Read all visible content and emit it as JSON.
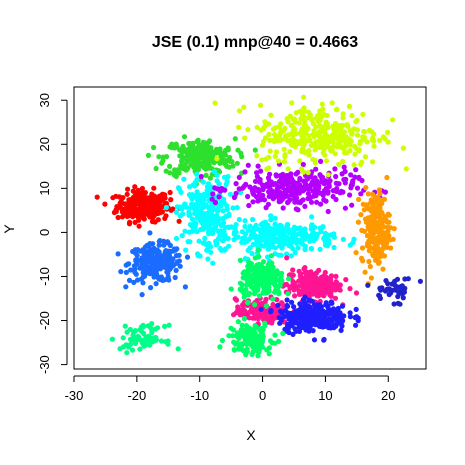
{
  "chart_data": {
    "type": "scatter",
    "title": "JSE (0.1) mnp@40 = 0.4663",
    "xlabel": "X",
    "ylabel": "Y",
    "xlim": [
      -30,
      26
    ],
    "ylim": [
      -31,
      33
    ],
    "xticks": [
      -30,
      -20,
      -10,
      0,
      10,
      20
    ],
    "yticks": [
      -30,
      -20,
      -10,
      0,
      10,
      20,
      30
    ],
    "series": [
      {
        "name": "cluster-red",
        "color": "#ff0000",
        "center": [
          -19,
          6
        ],
        "spread": [
          3,
          2.5
        ],
        "count": 260
      },
      {
        "name": "cluster-blue",
        "color": "#1a6cff",
        "center": [
          -17,
          -7
        ],
        "spread": [
          3,
          3
        ],
        "count": 240
      },
      {
        "name": "cluster-green",
        "color": "#2ee02e",
        "center": [
          -10,
          17
        ],
        "spread": [
          4,
          3
        ],
        "count": 240
      },
      {
        "name": "cluster-cyan-left",
        "color": "#00ffff",
        "center": [
          -9,
          4
        ],
        "spread": [
          3,
          6
        ],
        "count": 260
      },
      {
        "name": "cluster-cyan-center",
        "color": "#00ffff",
        "center": [
          3,
          -1
        ],
        "spread": [
          6,
          2.5
        ],
        "count": 260
      },
      {
        "name": "cluster-purple",
        "color": "#b400ff",
        "center": [
          5,
          10
        ],
        "spread": [
          7,
          3
        ],
        "count": 300
      },
      {
        "name": "cluster-lime",
        "color": "#ccff00",
        "center": [
          9,
          22
        ],
        "spread": [
          7,
          5
        ],
        "count": 320
      },
      {
        "name": "cluster-orange",
        "color": "#ff9900",
        "center": [
          18,
          1
        ],
        "spread": [
          1.6,
          6
        ],
        "count": 200
      },
      {
        "name": "cluster-pink",
        "color": "#ff1493",
        "center": [
          8,
          -12
        ],
        "spread": [
          3,
          2.5
        ],
        "count": 200
      },
      {
        "name": "cluster-magenta",
        "color": "#ff1493",
        "center": [
          0,
          -18
        ],
        "spread": [
          3,
          2
        ],
        "count": 160
      },
      {
        "name": "cluster-navy",
        "color": "#1f1fff",
        "center": [
          8,
          -19
        ],
        "spread": [
          4,
          2.5
        ],
        "count": 260
      },
      {
        "name": "cluster-mint",
        "color": "#00ff66",
        "center": [
          0,
          -11
        ],
        "spread": [
          2.5,
          3
        ],
        "count": 200
      },
      {
        "name": "cluster-mint-lower",
        "color": "#00ff66",
        "center": [
          -2,
          -24
        ],
        "spread": [
          2.5,
          2.5
        ],
        "count": 140
      },
      {
        "name": "cluster-seagreen",
        "color": "#00ff88",
        "center": [
          -19,
          -24
        ],
        "spread": [
          2.5,
          2
        ],
        "count": 70
      },
      {
        "name": "cluster-darkblue",
        "color": "#2222cc",
        "center": [
          21,
          -13
        ],
        "spread": [
          2.5,
          2
        ],
        "count": 40
      }
    ]
  }
}
